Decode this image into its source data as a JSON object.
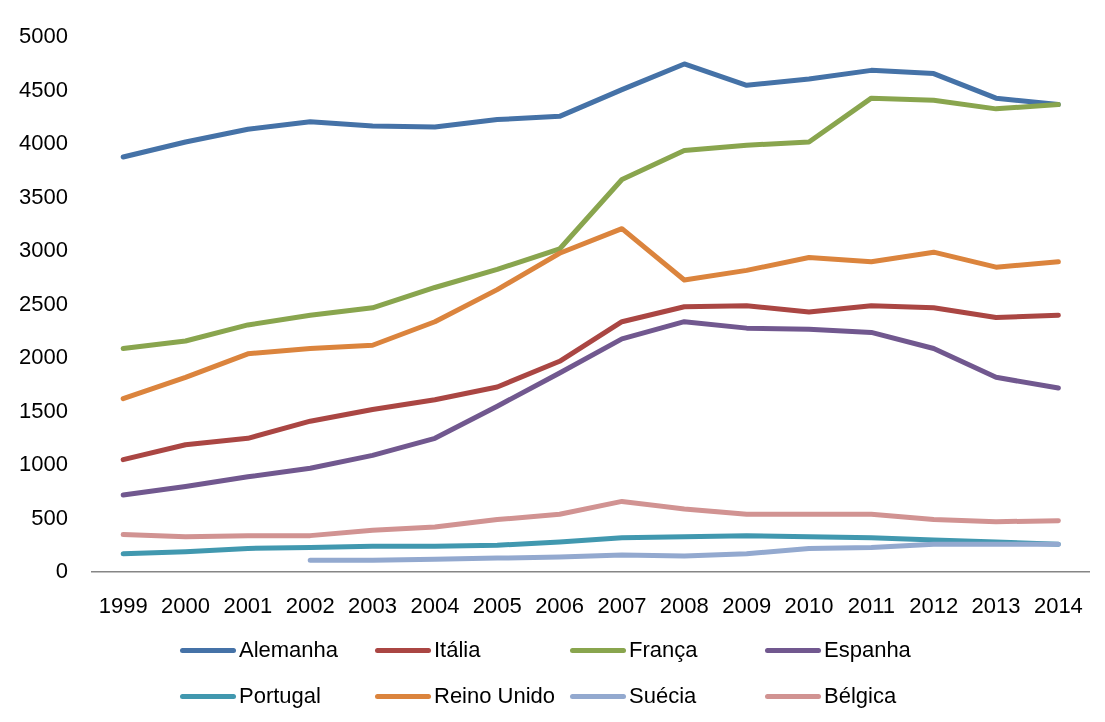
{
  "chart_data": {
    "type": "line",
    "categories": [
      "1999",
      "2000",
      "2001",
      "2002",
      "2003",
      "2004",
      "2005",
      "2006",
      "2007",
      "2008",
      "2009",
      "2010",
      "2011",
      "2012",
      "2013",
      "2014"
    ],
    "series": [
      {
        "name": "Alemanha",
        "color": "#4572a7",
        "values": [
          3880,
          4020,
          4140,
          4210,
          4170,
          4160,
          4230,
          4260,
          4510,
          4750,
          4550,
          4610,
          4690,
          4660,
          4430,
          4370
        ]
      },
      {
        "name": "Itália",
        "color": "#aa4643",
        "values": [
          1050,
          1190,
          1250,
          1410,
          1520,
          1610,
          1730,
          1970,
          2340,
          2480,
          2490,
          2430,
          2490,
          2470,
          2380,
          2400
        ]
      },
      {
        "name": "França",
        "color": "#89a54e",
        "values": [
          2090,
          2160,
          2310,
          2400,
          2470,
          2660,
          2830,
          3020,
          3670,
          3940,
          3990,
          4020,
          4430,
          4410,
          4330,
          4370
        ]
      },
      {
        "name": "Espanha",
        "color": "#71588f",
        "values": [
          720,
          800,
          890,
          970,
          1090,
          1250,
          1550,
          1860,
          2180,
          2340,
          2280,
          2270,
          2240,
          2090,
          1820,
          1720
        ]
      },
      {
        "name": "Portugal",
        "color": "#4198af",
        "values": [
          170,
          190,
          220,
          230,
          240,
          240,
          250,
          280,
          320,
          330,
          340,
          330,
          320,
          300,
          280,
          260
        ]
      },
      {
        "name": "Reino Unido",
        "color": "#db843d",
        "values": [
          1620,
          1820,
          2040,
          2090,
          2120,
          2340,
          2640,
          2980,
          3210,
          2730,
          2820,
          2940,
          2900,
          2990,
          2850,
          2900
        ]
      },
      {
        "name": "Suécia",
        "color": "#93a9cf",
        "values": [
          null,
          null,
          null,
          110,
          110,
          120,
          130,
          140,
          160,
          150,
          170,
          220,
          230,
          260,
          260,
          260
        ]
      },
      {
        "name": "Bélgica",
        "color": "#d19392",
        "values": [
          350,
          330,
          340,
          340,
          390,
          420,
          490,
          540,
          660,
          590,
          540,
          540,
          540,
          490,
          470,
          480
        ]
      }
    ],
    "ylim": [
      0,
      5000
    ],
    "yticks": [
      0,
      500,
      1000,
      1500,
      2000,
      2500,
      3000,
      3500,
      4000,
      4500,
      5000
    ],
    "legend": "bottom"
  }
}
